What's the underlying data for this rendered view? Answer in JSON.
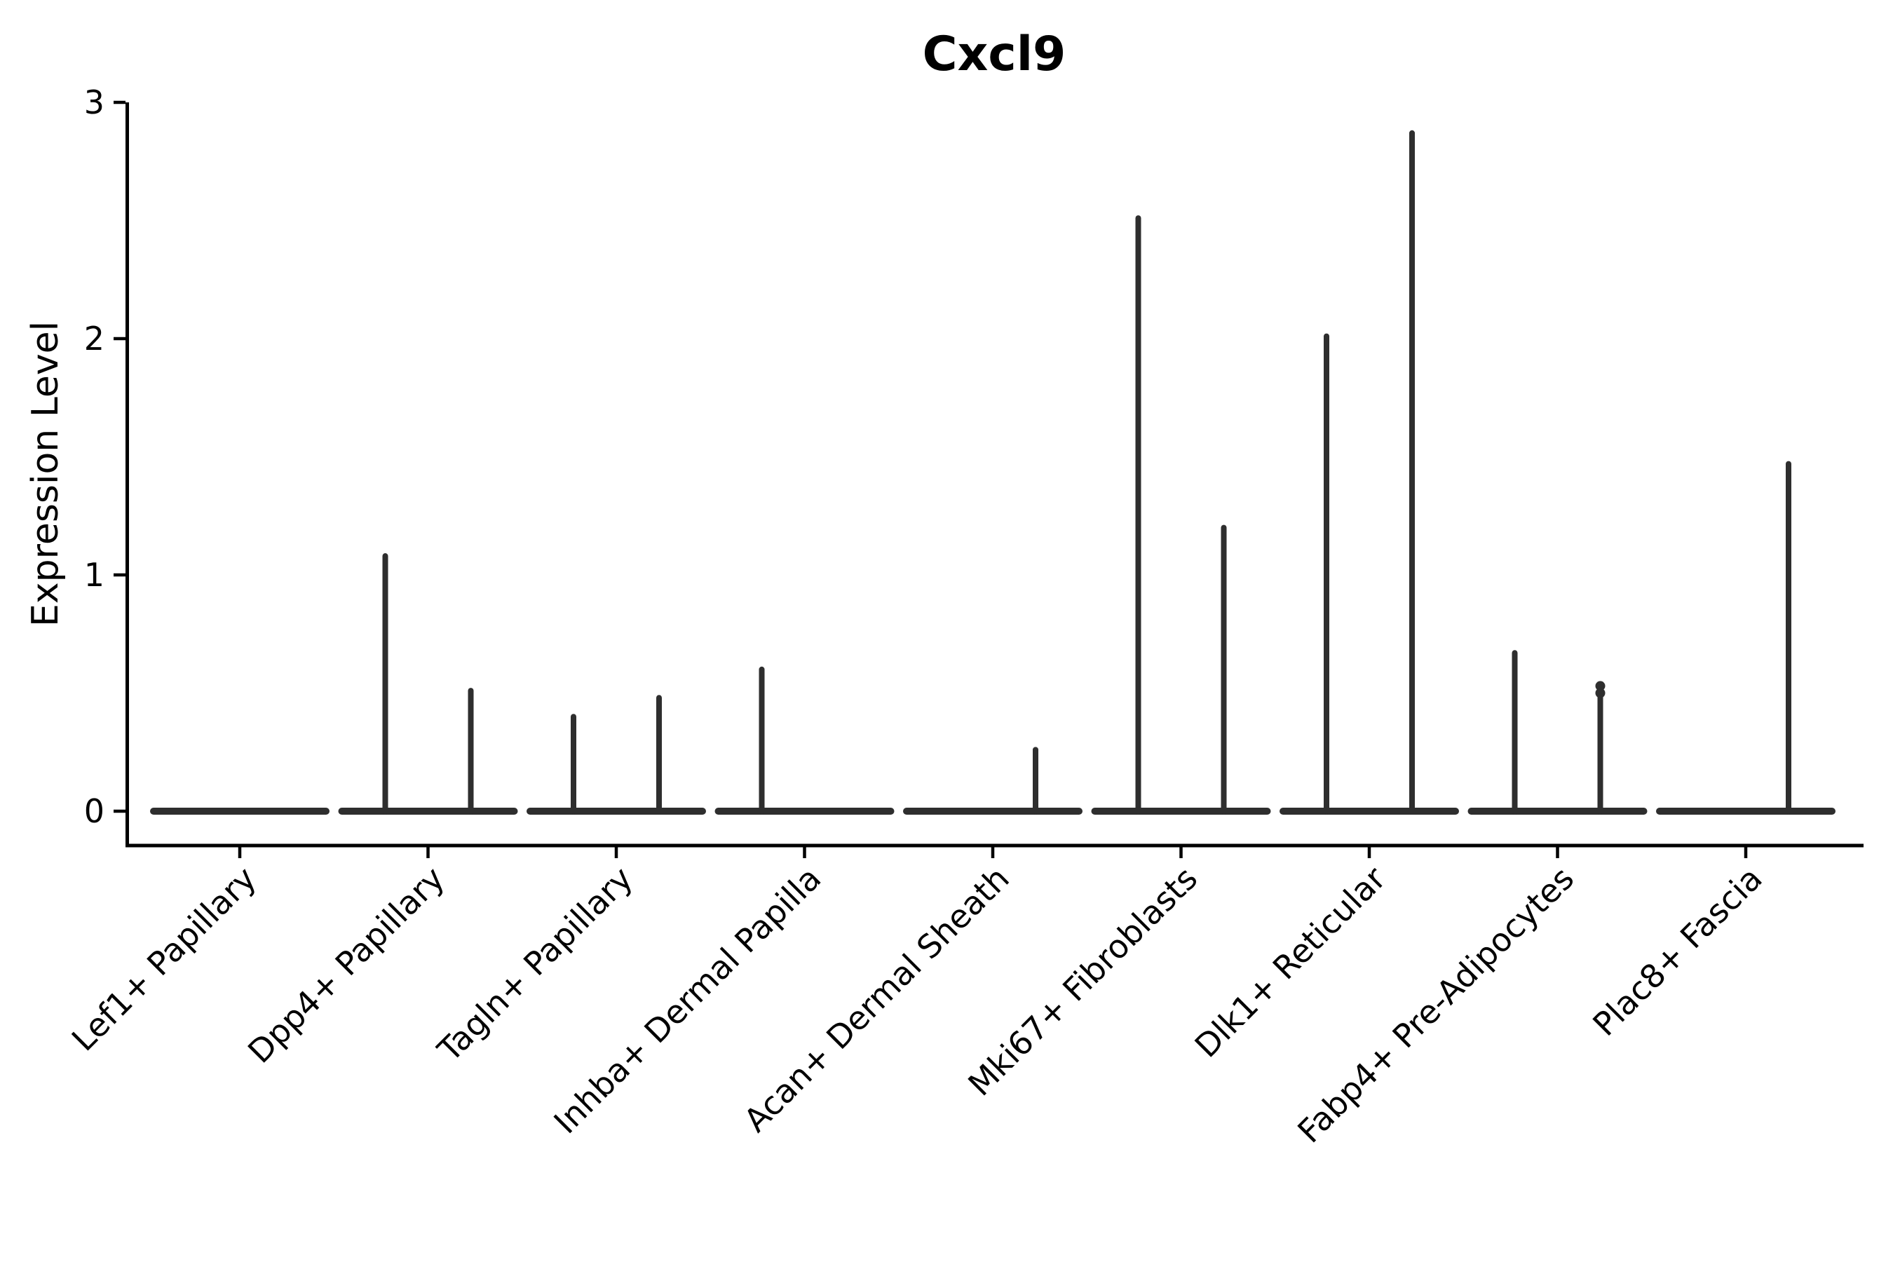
{
  "title": "Cxcl9",
  "y_axis": {
    "label": "Expression Level",
    "tick_labels": [
      "0",
      "1",
      "2",
      "3"
    ],
    "min": 0,
    "max": 3
  },
  "chart_data": {
    "type": "violin",
    "title": "Cxcl9",
    "ylabel": "Expression Level",
    "ylim": [
      0,
      3
    ],
    "yticks": [
      0,
      1,
      2,
      3
    ],
    "grid": false,
    "legend": "none",
    "categories": [
      "Lef1+ Papillary",
      "Dpp4+ Papillary",
      "Tagln+ Papillary",
      "Inhba+ Dermal Papilla",
      "Acan+ Dermal Sheath",
      "Mki67+ Fibroblasts",
      "Dlk1+ Reticular",
      "Fabp4+ Pre-Adipocytes",
      "Plac8+ Fascia"
    ],
    "description": "Violin plot of Cxcl9 expression per fibroblast subtype; each category shows a flat violin body at 0 with thin spikes marking maximum expressing cells (two half-position violins per category).",
    "violins": [
      {
        "category": "Lef1+ Papillary",
        "baseline": 0,
        "spikes": []
      },
      {
        "category": "Dpp4+ Papillary",
        "baseline": 0,
        "spikes": [
          {
            "side": "left",
            "max": 1.08
          },
          {
            "side": "right",
            "max": 0.51
          }
        ]
      },
      {
        "category": "Tagln+ Papillary",
        "baseline": 0,
        "spikes": [
          {
            "side": "left",
            "max": 0.4
          },
          {
            "side": "right",
            "max": 0.48
          }
        ]
      },
      {
        "category": "Inhba+ Dermal Papilla",
        "baseline": 0,
        "spikes": [
          {
            "side": "left",
            "max": 0.6
          }
        ]
      },
      {
        "category": "Acan+ Dermal Sheath",
        "baseline": 0,
        "spikes": [
          {
            "side": "right",
            "max": 0.26
          }
        ]
      },
      {
        "category": "Mki67+ Fibroblasts",
        "baseline": 0,
        "spikes": [
          {
            "side": "left",
            "max": 2.51
          },
          {
            "side": "right",
            "max": 1.2
          }
        ]
      },
      {
        "category": "Dlk1+ Reticular",
        "baseline": 0,
        "spikes": [
          {
            "side": "left",
            "max": 2.01
          },
          {
            "side": "right",
            "max": 2.87
          }
        ]
      },
      {
        "category": "Fabp4+ Pre-Adipocytes",
        "baseline": 0,
        "spikes": [
          {
            "side": "left",
            "max": 0.67
          },
          {
            "side": "right",
            "max": 0.53,
            "beads": [
              0.5,
              0.53
            ]
          }
        ]
      },
      {
        "category": "Plac8+ Fascia",
        "baseline": 0,
        "spikes": [
          {
            "side": "right",
            "max": 1.47
          }
        ]
      }
    ],
    "colors": {
      "violin_line": "#2e2e2e",
      "axis": "#000000",
      "background": "#ffffff"
    }
  }
}
